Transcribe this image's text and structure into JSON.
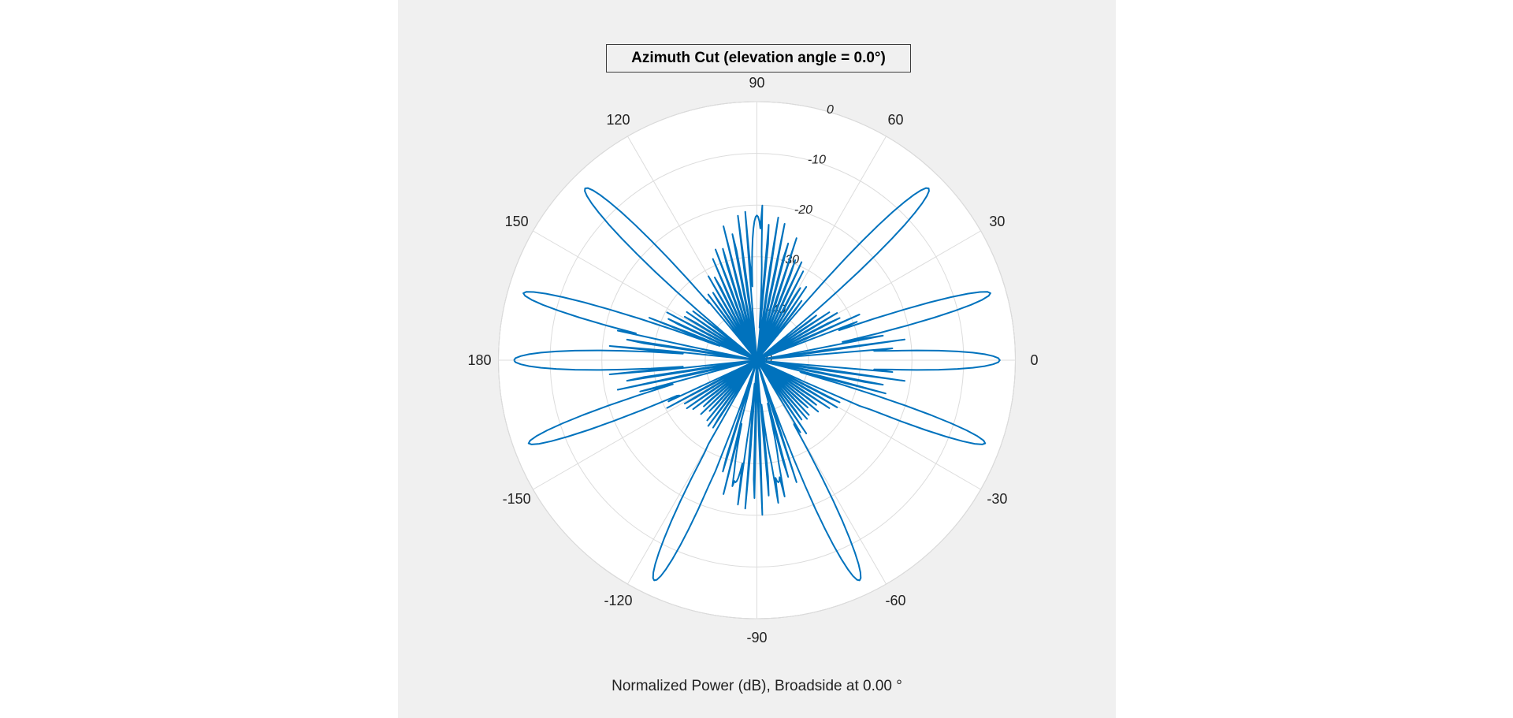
{
  "chart_data": {
    "type": "polar-line",
    "title": "Azimuth Cut (elevation angle = 0.0°)",
    "xlabel": "Normalized Power (dB), Broadside at 0.00 °",
    "theta_unit": "degrees",
    "theta_ticks": [
      0,
      30,
      60,
      90,
      120,
      150,
      180,
      -150,
      -120,
      -90,
      -60,
      -30
    ],
    "r_ticks": [
      0,
      -10,
      -20,
      -30,
      -40,
      -50
    ],
    "r_range": [
      -50,
      0
    ],
    "r_label_angle": 75,
    "grid": true,
    "line_color": "#0072BD",
    "lobes": [
      {
        "center": 0,
        "peak": -3,
        "width": 12
      },
      {
        "center": 16,
        "peak": -3,
        "width": 10
      },
      {
        "center": 45,
        "peak": -3,
        "width": 12
      },
      {
        "center": 90,
        "peak": -22,
        "width": 10
      },
      {
        "center": 135,
        "peak": -3,
        "width": 12
      },
      {
        "center": 164,
        "peak": -3,
        "width": 10
      },
      {
        "center": 180,
        "peak": -3,
        "width": 12
      },
      {
        "center": -20,
        "peak": -3,
        "width": 10
      },
      {
        "center": -65,
        "peak": -3,
        "width": 12
      },
      {
        "center": -80,
        "peak": -26,
        "width": 10
      },
      {
        "center": -100,
        "peak": -26,
        "width": 10
      },
      {
        "center": -115,
        "peak": -3,
        "width": 12
      },
      {
        "center": -160,
        "peak": -3,
        "width": 10
      }
    ],
    "sidelobe_level_range": [
      -35,
      -20
    ]
  },
  "colors": {
    "background": "#f0f0f0",
    "plot_area": "#ffffff",
    "grid": "#dcdcdc",
    "line": "#0072BD"
  }
}
